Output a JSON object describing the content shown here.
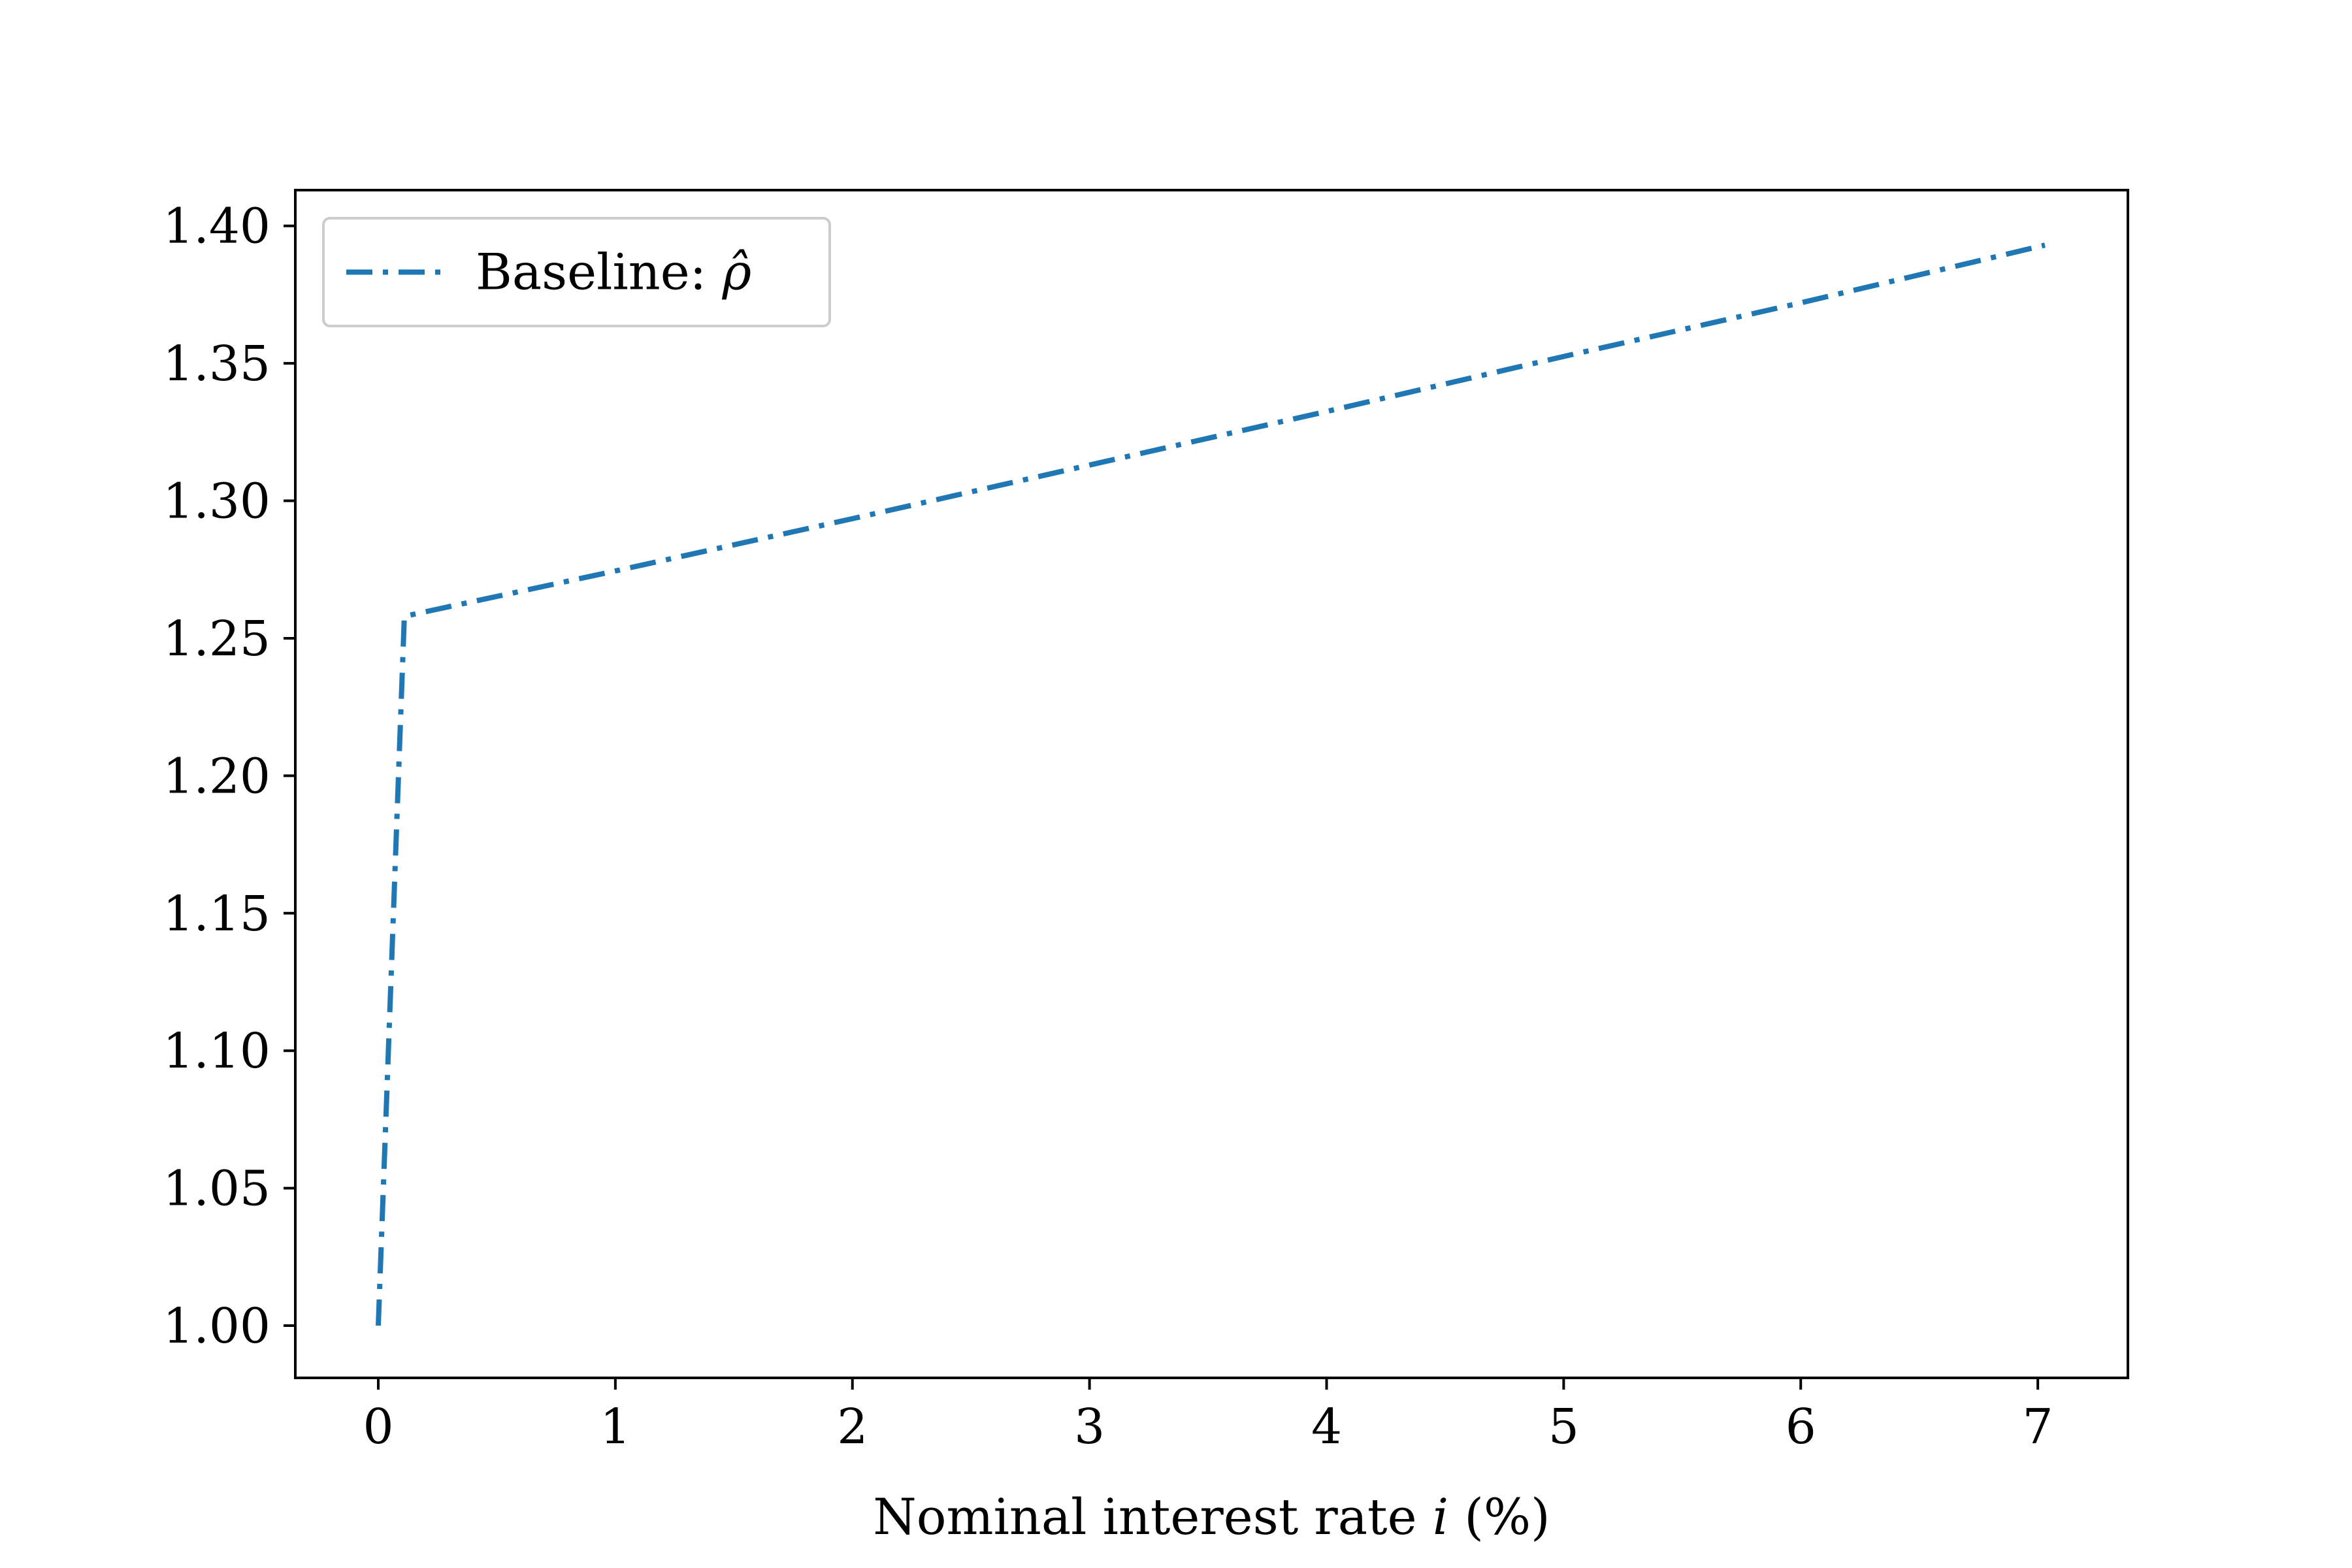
{
  "chart_data": {
    "type": "line",
    "title": "",
    "xlabel": "Nominal interest rate i (%)",
    "xlabel_parts": {
      "prefix": "Nominal interest rate ",
      "variable": "i",
      "suffix": " (%)"
    },
    "ylabel": "",
    "xlim": [
      -0.35,
      7.38
    ],
    "ylim": [
      0.981,
      1.413
    ],
    "xticks": [
      0,
      1,
      2,
      3,
      4,
      5,
      6,
      7
    ],
    "xtick_labels": [
      "0",
      "1",
      "2",
      "3",
      "4",
      "5",
      "6",
      "7"
    ],
    "yticks": [
      1.0,
      1.05,
      1.1,
      1.15,
      1.2,
      1.25,
      1.3,
      1.35,
      1.4
    ],
    "ytick_labels": [
      "1.00",
      "1.05",
      "1.10",
      "1.15",
      "1.20",
      "1.25",
      "1.30",
      "1.35",
      "1.40"
    ],
    "grid": false,
    "legend_position": "upper left",
    "series": [
      {
        "name": "Baseline: ρ̂",
        "legend_prefix": "Baseline: ",
        "legend_symbol": "ρ̂",
        "color": "#1f77b4",
        "line_style": "dash-dot",
        "x": [
          0.0,
          0.11,
          1.0,
          2.0,
          3.0,
          4.0,
          5.0,
          6.0,
          7.03
        ],
        "y": [
          1.0,
          1.258,
          1.2745,
          1.2935,
          1.313,
          1.3325,
          1.3525,
          1.372,
          1.393
        ]
      }
    ]
  }
}
